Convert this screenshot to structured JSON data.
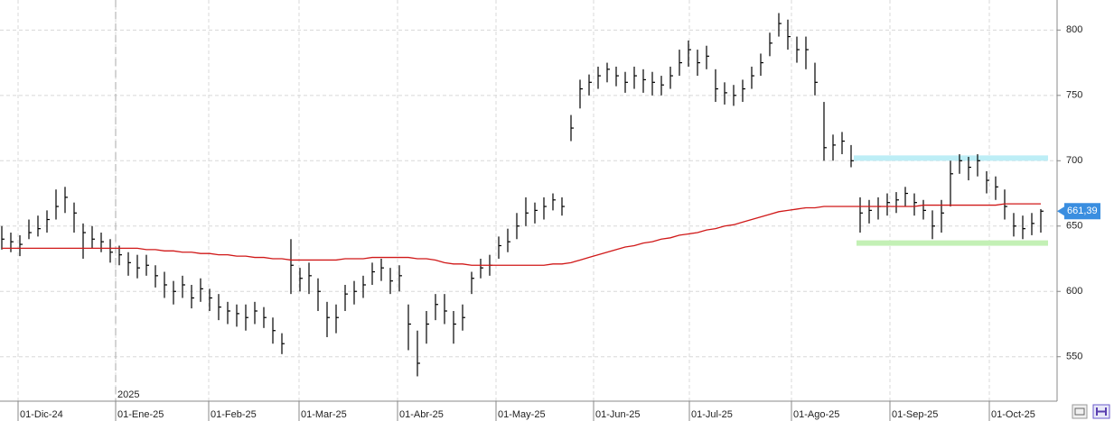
{
  "chart_data": {
    "type": "ohlc",
    "xlim": [
      -0.2,
      116.6
    ],
    "ylim": [
      516,
      823
    ],
    "yticks": [
      550,
      600,
      650,
      700,
      750,
      800
    ],
    "xticks": [
      {
        "value": 1.8,
        "label": "01-Dic-24"
      },
      {
        "value": 12.6,
        "label": "01-Ene-25"
      },
      {
        "value": 22.9,
        "label": "01-Feb-25"
      },
      {
        "value": 32.9,
        "label": "01-Mar-25"
      },
      {
        "value": 43.8,
        "label": "01-Abr-25"
      },
      {
        "value": 54.7,
        "label": "01-May-25"
      },
      {
        "value": 65.5,
        "label": "01-Jun-25"
      },
      {
        "value": 76.1,
        "label": "01-Jul-25"
      },
      {
        "value": 87.4,
        "label": "01-Ago-25"
      },
      {
        "value": 98.3,
        "label": "01-Sep-25"
      },
      {
        "value": 109.3,
        "label": "01-Oct-25"
      }
    ],
    "year_marker": {
      "value": 12.6,
      "label": "2025"
    },
    "color": "#000000",
    "grid": true,
    "high": [
      650,
      645,
      643,
      655,
      658,
      662,
      678,
      680,
      668,
      652,
      650,
      645,
      640,
      635,
      630,
      628,
      628,
      620,
      615,
      608,
      612,
      605,
      610,
      602,
      598,
      592,
      590,
      590,
      592,
      588,
      580,
      568,
      640,
      618,
      622,
      610,
      592,
      590,
      605,
      608,
      612,
      622,
      625,
      618,
      620,
      590,
      570,
      585,
      598,
      598,
      585,
      590,
      615,
      625,
      628,
      642,
      648,
      660,
      672,
      668,
      672,
      675,
      672,
      735,
      762,
      766,
      772,
      775,
      772,
      768,
      772,
      770,
      768,
      765,
      772,
      785,
      792,
      785,
      788,
      770,
      760,
      758,
      762,
      772,
      782,
      798,
      813,
      808,
      795,
      795,
      775,
      745,
      720,
      722,
      712,
      672,
      670,
      672,
      675,
      676,
      680,
      675,
      670,
      662,
      670,
      700,
      705,
      703,
      705,
      692,
      688,
      678,
      660,
      658,
      660,
      663
    ],
    "low": [
      632,
      630,
      627,
      640,
      642,
      645,
      655,
      660,
      645,
      625,
      633,
      630,
      622,
      620,
      612,
      610,
      612,
      603,
      595,
      590,
      595,
      587,
      592,
      585,
      578,
      575,
      573,
      570,
      575,
      572,
      560,
      552,
      598,
      600,
      598,
      585,
      565,
      568,
      585,
      590,
      595,
      605,
      608,
      598,
      600,
      555,
      535,
      560,
      578,
      575,
      560,
      570,
      598,
      610,
      612,
      625,
      630,
      640,
      650,
      652,
      655,
      662,
      658,
      715,
      740,
      750,
      755,
      760,
      757,
      752,
      755,
      752,
      750,
      750,
      755,
      765,
      772,
      765,
      770,
      745,
      743,
      742,
      745,
      755,
      765,
      780,
      795,
      785,
      775,
      770,
      750,
      700,
      700,
      705,
      695,
      645,
      652,
      655,
      658,
      660,
      665,
      658,
      655,
      640,
      645,
      665,
      690,
      685,
      688,
      675,
      670,
      655,
      642,
      640,
      643,
      645
    ],
    "close": [
      640,
      638,
      636,
      645,
      648,
      655,
      665,
      672,
      660,
      645,
      640,
      638,
      630,
      628,
      622,
      618,
      620,
      612,
      605,
      600,
      605,
      595,
      602,
      595,
      588,
      585,
      583,
      580,
      585,
      580,
      570,
      560,
      620,
      610,
      612,
      600,
      580,
      580,
      598,
      600,
      605,
      615,
      618,
      608,
      612,
      575,
      545,
      575,
      590,
      585,
      575,
      580,
      610,
      618,
      620,
      635,
      638,
      650,
      660,
      662,
      665,
      670,
      665,
      725,
      755,
      760,
      765,
      770,
      765,
      760,
      765,
      762,
      760,
      758,
      765,
      775,
      785,
      775,
      780,
      755,
      752,
      750,
      755,
      765,
      775,
      790,
      805,
      795,
      785,
      785,
      760,
      710,
      712,
      715,
      700,
      660,
      662,
      665,
      668,
      670,
      675,
      668,
      662,
      650,
      660,
      690,
      700,
      695,
      700,
      685,
      680,
      665,
      650,
      648,
      652,
      661.39
    ],
    "ma": {
      "color": "#d01818",
      "values": [
        633,
        633,
        633,
        633,
        633,
        633,
        633,
        633,
        633,
        633,
        633,
        633,
        633,
        633,
        633,
        633,
        632,
        632,
        631,
        631,
        630,
        630,
        629,
        629,
        628,
        628,
        627,
        627,
        626,
        626,
        625,
        625,
        624,
        624,
        624,
        624,
        624,
        624,
        625,
        625,
        625,
        626,
        626,
        626,
        626,
        626,
        625,
        625,
        624,
        622,
        621,
        621,
        620,
        620,
        620,
        620,
        620,
        620,
        620,
        620,
        620,
        621,
        621,
        622,
        624,
        626,
        628,
        630,
        632,
        634,
        635,
        637,
        638,
        640,
        641,
        643,
        644,
        645,
        647,
        648,
        650,
        651,
        653,
        655,
        657,
        659,
        661,
        662,
        663,
        664,
        664,
        665,
        665,
        665,
        665,
        665,
        665,
        665,
        665,
        665,
        665,
        665,
        666,
        666,
        666,
        666,
        666,
        666,
        666,
        666,
        666,
        667,
        667,
        667,
        667,
        667
      ]
    },
    "levels": [
      {
        "value": 702,
        "from": 94.3,
        "to": 115.8,
        "color": "#bdeef6"
      },
      {
        "value": 637,
        "from": 94.6,
        "to": 115.8,
        "color": "#c3f0b5"
      }
    ],
    "last_price": {
      "value": 661.39,
      "label": "661,39",
      "color": "#3a8ee0"
    }
  }
}
